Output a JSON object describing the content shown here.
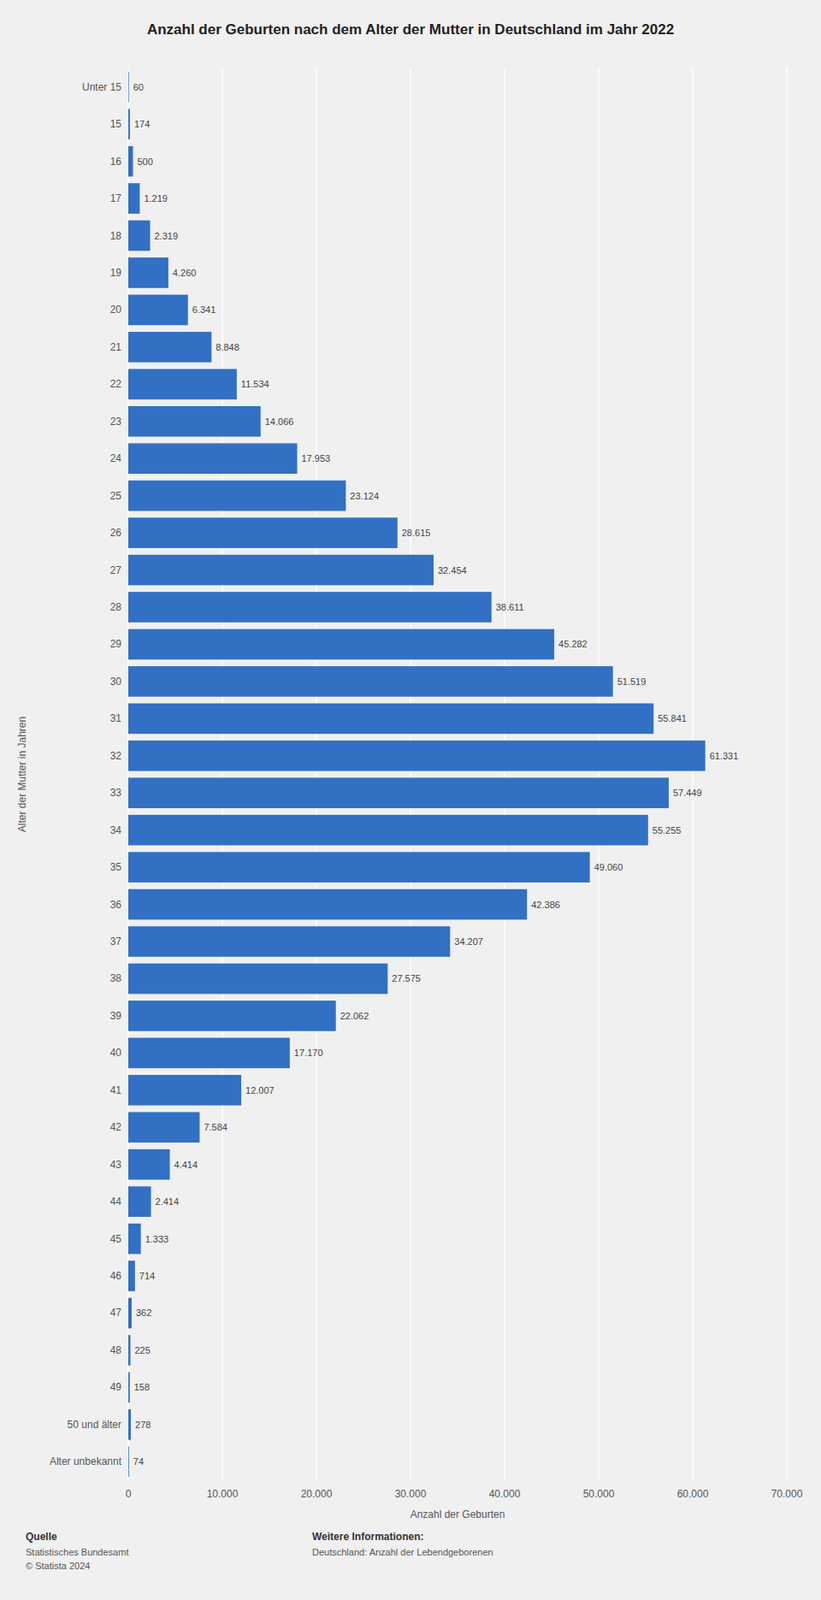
{
  "chart_data": {
    "type": "bar",
    "orientation": "horizontal",
    "title": "Anzahl der Geburten nach dem Alter der Mutter in Deutschland im Jahr 2022",
    "xlabel": "Anzahl der Geburten",
    "ylabel": "Alter der Mutter in Jahren",
    "categories": [
      "Unter 15",
      "15",
      "16",
      "17",
      "18",
      "19",
      "20",
      "21",
      "22",
      "23",
      "24",
      "25",
      "26",
      "27",
      "28",
      "29",
      "30",
      "31",
      "32",
      "33",
      "34",
      "35",
      "36",
      "37",
      "38",
      "39",
      "40",
      "41",
      "42",
      "43",
      "44",
      "45",
      "46",
      "47",
      "48",
      "49",
      "50 und älter",
      "Alter unbekannt"
    ],
    "values": [
      60,
      174,
      500,
      1219,
      2319,
      4260,
      6341,
      8848,
      11534,
      14066,
      17953,
      23124,
      28615,
      32454,
      38611,
      45282,
      51519,
      55841,
      61331,
      57449,
      55255,
      49060,
      42386,
      34207,
      27575,
      22062,
      17170,
      12007,
      7584,
      4414,
      2414,
      1333,
      714,
      362,
      225,
      158,
      278,
      74
    ],
    "value_labels": [
      "60",
      "174",
      "500",
      "1.219",
      "2.319",
      "4.260",
      "6.341",
      "8.848",
      "11.534",
      "14.066",
      "17.953",
      "23.124",
      "28.615",
      "32.454",
      "38.611",
      "45.282",
      "51.519",
      "55.841",
      "61.331",
      "57.449",
      "55.255",
      "49.060",
      "42.386",
      "34.207",
      "27.575",
      "22.062",
      "17.170",
      "12.007",
      "7.584",
      "4.414",
      "2.414",
      "1.333",
      "714",
      "362",
      "225",
      "158",
      "278",
      "74"
    ],
    "data_labels": true,
    "color": "#3170c3",
    "xlim": [
      0,
      70000
    ],
    "xticks": [
      0,
      {
        "value": 10000,
        "label": "10.000"
      },
      {
        "value": 20000,
        "label": "20.000"
      },
      {
        "value": 30000,
        "label": "30.000"
      },
      {
        "value": 40000,
        "label": "40.000"
      },
      {
        "value": 50000,
        "label": "50.000"
      },
      {
        "value": 60000,
        "label": "60.000"
      },
      {
        "value": 70000,
        "label": "70.000"
      }
    ],
    "grid": true,
    "annotations": [
      "Quelle",
      "Statistisches Bundesamt",
      "© Statista 2024",
      "Weitere Informationen:",
      "Deutschland: Anzahl der Lebendgeborenen"
    ]
  }
}
